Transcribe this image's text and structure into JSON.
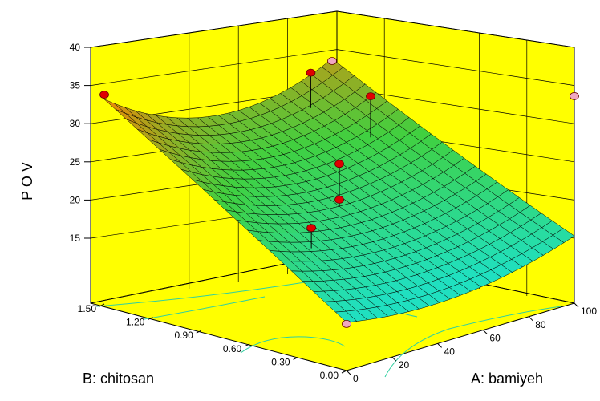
{
  "chart_data": {
    "type": "surface",
    "zlabel": "P O V",
    "xlabel": "A: bamiyeh",
    "ylabel": "B: chitosan",
    "z_ticks": [
      "15",
      "20",
      "25",
      "30",
      "35",
      "40"
    ],
    "x_ticks": [
      "0",
      "20",
      "40",
      "60",
      "80",
      "100"
    ],
    "y_ticks": [
      "0.00",
      "0.30",
      "0.60",
      "0.90",
      "1.20",
      "1.50"
    ],
    "xlim": [
      0,
      100
    ],
    "ylim": [
      0,
      1.5
    ],
    "zlim": [
      15,
      40
    ],
    "grid": true,
    "colors": {
      "background": "#ffff00",
      "surface_low": "#20e0c0",
      "surface_mid": "#40d040",
      "surface_high": "#ff8000",
      "design_point_above": "#e00000",
      "design_point_below": "#f0a8c0"
    },
    "design_points": [
      {
        "A": 0,
        "B": 0,
        "POV": 12.6,
        "relative": "below"
      },
      {
        "A": 0,
        "B": 1.5,
        "POV": 33.9,
        "relative": "above"
      },
      {
        "A": 100,
        "B": 0,
        "POV": 33.6,
        "relative": "below"
      },
      {
        "A": 100,
        "B": 1.5,
        "POV": 29.5,
        "relative": "below"
      },
      {
        "A": 50,
        "B": 0.75,
        "POV": 24.8,
        "relative": "above"
      },
      {
        "A": 50,
        "B": 0.75,
        "POV": 20.1,
        "relative": "above"
      },
      {
        "A": 20,
        "B": 0.5,
        "POV": 20.5,
        "relative": "above"
      },
      {
        "A": 85,
        "B": 1.05,
        "POV": 28.8,
        "relative": "above"
      },
      {
        "A": 80,
        "B": 1.35,
        "POV": 30.6,
        "relative": "above"
      }
    ]
  }
}
